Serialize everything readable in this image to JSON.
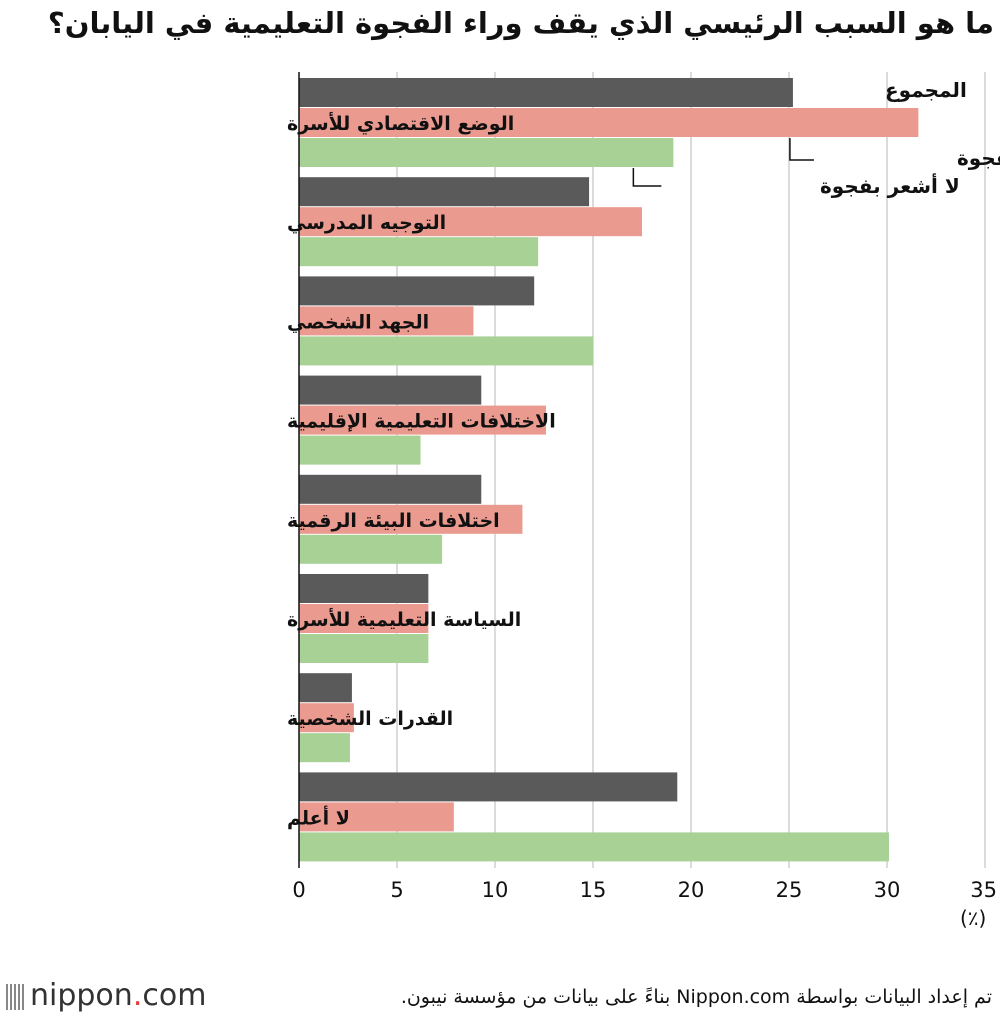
{
  "title": "ما هو السبب الرئيسي الذي يقف وراء الفجوة التعليمية في اليابان؟",
  "unit": "(٪)",
  "footer": "تم إعداد البيانات بواسطة Nippon.com بناءً على بيانات من مؤسسة نيبون.",
  "logo": {
    "name": "nippon",
    "dot": ".",
    "suffix": "com"
  },
  "chart_data": {
    "type": "bar",
    "orientation": "horizontal",
    "categories": [
      "الوضع الاقتصادي للأسرة",
      "التوجيه المدرسي",
      "الجهد الشخصي",
      "الاختلافات التعليمية الإقليمية",
      "اختلافات البيئة الرقمية",
      "السياسة التعليمية للأسرة",
      "القدرات الشخصية",
      "لا أعلم"
    ],
    "series": [
      {
        "name": "المجموع",
        "color": "#5a5a5a",
        "values": [
          25.2,
          14.8,
          12.0,
          9.3,
          9.3,
          6.6,
          2.7,
          19.3
        ]
      },
      {
        "name": "أشعر بفجوة",
        "color": "#ea9a8e",
        "values": [
          31.6,
          17.5,
          8.9,
          12.6,
          11.4,
          6.6,
          2.8,
          7.9
        ]
      },
      {
        "name": "لا أشعر بفجوة",
        "color": "#a8d195",
        "values": [
          19.1,
          12.2,
          15.0,
          6.2,
          7.3,
          6.6,
          2.6,
          30.1
        ]
      }
    ],
    "xlim": [
      0,
      35
    ],
    "xticks": [
      "0",
      "5",
      "10",
      "15",
      "20",
      "25",
      "30",
      "35"
    ],
    "grid": true,
    "legend": "labels at end of top bars"
  }
}
